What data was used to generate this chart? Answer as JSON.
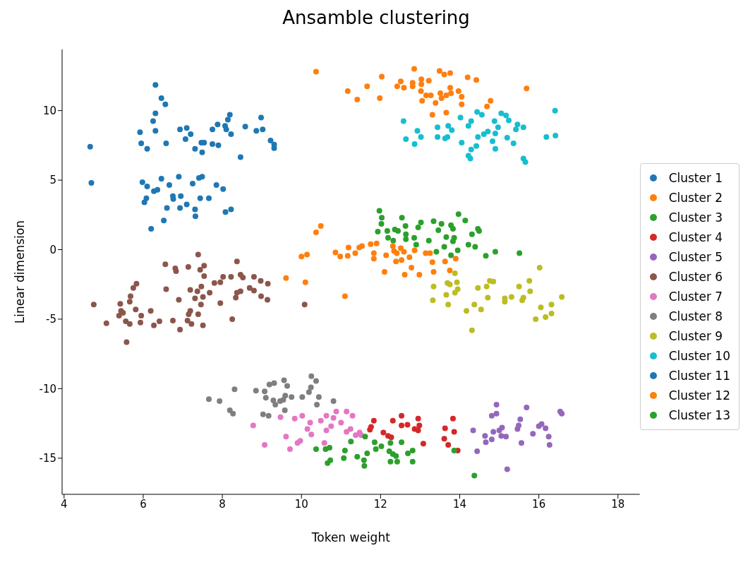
{
  "chart_data": {
    "type": "scatter",
    "title": "Ansamble clustering",
    "xlabel": "Token weight",
    "ylabel": "Linear dimension",
    "xlim": [
      3.95,
      18.55
    ],
    "ylim": [
      -17.6,
      14.4
    ],
    "xticks": [
      4,
      6,
      8,
      10,
      12,
      14,
      16,
      18
    ],
    "yticks": [
      -15,
      -10,
      -5,
      0,
      5,
      10
    ],
    "grid": false,
    "legend": "right",
    "marker": "circle",
    "series": [
      {
        "name": "Cluster 1",
        "color": "#1f77b4",
        "x": [
          6.31,
          6.46,
          6.56,
          6.31,
          6.25,
          5.92,
          6.31,
          5.95,
          6.1,
          6.58,
          6.93,
          7.1,
          7.2,
          7.07,
          7.31,
          7.47,
          7.54,
          7.49,
          7.75,
          7.88,
          7.75,
          7.9,
          8.07,
          8.1,
          8.14,
          8.19,
          8.22,
          8.46,
          8.58,
          8.86,
          9.02,
          8.98,
          9.22,
          9.31,
          9.31,
          4.66
        ],
        "values": [
          11.85,
          10.9,
          10.45,
          9.8,
          9.25,
          8.45,
          8.55,
          7.65,
          7.25,
          7.65,
          8.65,
          8.75,
          8.3,
          7.95,
          7.25,
          7.7,
          7.7,
          7.0,
          8.65,
          9.0,
          7.6,
          7.5,
          8.9,
          8.65,
          9.35,
          9.7,
          8.3,
          6.65,
          8.85,
          8.55,
          8.65,
          9.5,
          7.85,
          7.55,
          7.3,
          7.4
        ]
      },
      {
        "name": "Cluster 2",
        "color": "#ff7f0e",
        "x": [
          10.37,
          11.17,
          11.41,
          11.66,
          12.03,
          11.98,
          12.42,
          12.51,
          12.59,
          12.81,
          12.81,
          12.85,
          13.03,
          13.22,
          13.03,
          13.02,
          13.05,
          13.15,
          13.27,
          13.39,
          13.49,
          13.61,
          13.76,
          13.51,
          13.54,
          13.66,
          13.76,
          13.78,
          13.97,
          14.05,
          14.05,
          14.2,
          14.42,
          13.66,
          13.31,
          14.78,
          14.69,
          15.69
        ],
        "values": [
          12.8,
          11.4,
          10.8,
          11.75,
          12.45,
          10.9,
          11.75,
          12.1,
          11.65,
          12.0,
          11.75,
          13.0,
          12.25,
          12.15,
          11.9,
          11.4,
          10.7,
          11.1,
          11.1,
          10.55,
          12.85,
          12.6,
          12.7,
          11.25,
          10.9,
          11.1,
          11.65,
          11.25,
          11.4,
          11.0,
          10.45,
          12.4,
          12.2,
          9.85,
          9.7,
          10.7,
          10.3,
          11.6
        ]
      },
      {
        "name": "Cluster 3",
        "color": "#2ca02c",
        "x": [
          11.97,
          12.03,
          12.02,
          11.93,
          12.17,
          12.19,
          12.32,
          12.36,
          12.44,
          12.54,
          12.63,
          12.64,
          12.64,
          12.85,
          12.9,
          12.95,
          13.02,
          13.22,
          13.34,
          13.41,
          13.46,
          13.54,
          13.61,
          13.66,
          13.78,
          13.83,
          13.86,
          13.83,
          13.78,
          13.95,
          13.97,
          14.14,
          14.31,
          14.22,
          14.39,
          14.46,
          14.49,
          14.66,
          14.9,
          15.51
        ],
        "values": [
          2.8,
          2.3,
          1.85,
          1.3,
          1.35,
          0.85,
          0.65,
          1.45,
          1.35,
          2.3,
          1.7,
          1.1,
          0.75,
          0.85,
          0.35,
          1.6,
          1.95,
          0.65,
          2.05,
          -0.15,
          1.4,
          1.85,
          0.2,
          0.9,
          1.75,
          1.5,
          0.85,
          0.6,
          -0.4,
          -0.05,
          2.55,
          2.1,
          1.1,
          0.35,
          0.2,
          1.5,
          1.35,
          -0.45,
          -0.15,
          -0.25
        ]
      },
      {
        "name": "Cluster 4",
        "color": "#d62728",
        "x": [
          11.73,
          11.76,
          11.83,
          12.07,
          12.19,
          12.27,
          12.31,
          12.53,
          12.53,
          12.68,
          12.86,
          12.95,
          12.98,
          12.95,
          13.08,
          13.63,
          13.61,
          13.71,
          13.83,
          13.86,
          13.95
        ],
        "values": [
          -12.95,
          -12.75,
          -12.3,
          -13.15,
          -13.4,
          -13.5,
          -12.3,
          -11.95,
          -12.65,
          -12.6,
          -12.9,
          -12.15,
          -12.65,
          -13.0,
          -13.95,
          -12.85,
          -13.6,
          -14.05,
          -12.15,
          -13.1,
          -14.45
        ]
      },
      {
        "name": "Cluster 5",
        "color": "#9467bd",
        "x": [
          14.34,
          14.44,
          14.64,
          14.66,
          14.81,
          14.81,
          14.93,
          14.93,
          14.85,
          15.0,
          15.07,
          15.05,
          15.17,
          15.2,
          15.46,
          15.49,
          15.53,
          15.56,
          15.69,
          15.85,
          16.0,
          16.07,
          16.17,
          16.25,
          16.27,
          16.54,
          16.58
        ],
        "values": [
          -13.0,
          -14.5,
          -13.4,
          -13.85,
          -13.65,
          -11.95,
          -11.8,
          -11.15,
          -13.1,
          -13.0,
          -12.8,
          -13.4,
          -13.45,
          -15.8,
          -12.9,
          -12.65,
          -12.2,
          -13.9,
          -11.35,
          -13.25,
          -12.7,
          -12.55,
          -12.85,
          -13.45,
          -14.05,
          -11.65,
          -11.8
        ]
      },
      {
        "name": "Cluster 6",
        "color": "#8c564b",
        "x": [
          7.39,
          6.56,
          6.81,
          6.83,
          7.14,
          7.54,
          7.44,
          7.54,
          8.37,
          8.02,
          7.95,
          7.8,
          8.22,
          8.46,
          8.52,
          8.8,
          8.97,
          9.15,
          8.69,
          8.8,
          8.46,
          8.37,
          8.34,
          8.98,
          9.14,
          7.68,
          7.47,
          7.37,
          7.19,
          6.58,
          6.9,
          7.31,
          7.51,
          7.46,
          7.95,
          7.19,
          7.15,
          7.39,
          7.12,
          7.22,
          7.51,
          8.25,
          6.75,
          6.93,
          6.41,
          6.27,
          6.19,
          5.81,
          5.95,
          5.93,
          5.83,
          5.75,
          5.68,
          5.66,
          5.42,
          5.44,
          5.49,
          5.39,
          5.56,
          5.66,
          5.07,
          4.75,
          5.58,
          10.08
        ],
        "values": [
          -0.35,
          -1.05,
          -1.35,
          -1.55,
          -1.25,
          -1.15,
          -1.45,
          -1.9,
          -0.85,
          -1.95,
          -2.35,
          -2.4,
          -1.95,
          -1.8,
          -2.0,
          -1.95,
          -2.25,
          -2.45,
          -2.75,
          -2.95,
          -3.0,
          -3.1,
          -3.45,
          -3.35,
          -3.6,
          -3.1,
          -2.65,
          -3.0,
          -2.9,
          -2.85,
          -3.6,
          -3.5,
          -3.4,
          -3.95,
          -3.85,
          -4.4,
          -4.65,
          -4.65,
          -5.1,
          -5.35,
          -5.45,
          -5.0,
          -5.1,
          -5.75,
          -5.15,
          -5.45,
          -4.4,
          -4.3,
          -4.75,
          -5.25,
          -2.45,
          -2.75,
          -3.35,
          -3.75,
          -3.9,
          -4.4,
          -4.55,
          -4.75,
          -5.15,
          -5.35,
          -5.3,
          -3.95,
          -6.65,
          -3.95
        ]
      },
      {
        "name": "Cluster 7",
        "color": "#e377c2",
        "x": [
          8.78,
          9.07,
          9.47,
          9.61,
          9.71,
          9.83,
          9.9,
          9.97,
          10.02,
          10.15,
          10.22,
          10.25,
          10.49,
          10.63,
          10.63,
          10.75,
          10.81,
          10.88,
          10.58,
          11.0,
          11.14,
          11.29,
          11.14,
          11.24,
          11.37,
          11.47,
          11.51
        ],
        "values": [
          -12.65,
          -14.05,
          -12.05,
          -13.45,
          -14.35,
          -12.15,
          -13.9,
          -13.75,
          -11.95,
          -12.9,
          -12.45,
          -13.3,
          -12.3,
          -11.95,
          -13.0,
          -12.7,
          -12.1,
          -11.65,
          -13.9,
          -12.45,
          -11.65,
          -11.95,
          -13.1,
          -12.9,
          -13.35,
          -13.15,
          -13.35
        ]
      },
      {
        "name": "Cluster 8",
        "color": "#7f7f7f",
        "x": [
          7.66,
          7.93,
          8.31,
          8.19,
          8.27,
          8.85,
          9.07,
          9.1,
          9.19,
          9.31,
          9.29,
          9.34,
          9.46,
          9.54,
          9.59,
          9.56,
          9.64,
          9.75,
          9.58,
          9.03,
          9.17,
          10.02,
          10.19,
          10.24,
          10.25,
          10.37,
          10.44,
          10.39,
          10.81
        ],
        "values": [
          -10.75,
          -10.9,
          -10.05,
          -11.55,
          -11.8,
          -10.15,
          -10.2,
          -10.65,
          -9.7,
          -9.6,
          -10.85,
          -11.15,
          -10.9,
          -10.8,
          -10.5,
          -9.4,
          -9.8,
          -10.6,
          -11.55,
          -11.85,
          -11.95,
          -10.6,
          -10.25,
          -9.9,
          -9.1,
          -9.45,
          -10.6,
          -11.15,
          -10.9
        ]
      },
      {
        "name": "Cluster 9",
        "color": "#bcbd22",
        "x": [
          13.88,
          13.69,
          13.75,
          13.93,
          13.95,
          13.88,
          13.34,
          13.32,
          13.66,
          13.71,
          14.17,
          14.37,
          14.54,
          14.31,
          14.46,
          14.68,
          14.76,
          14.85,
          14.71,
          15.14,
          15.14,
          15.31,
          15.5,
          15.58,
          15.61,
          15.76,
          15.78,
          16.02,
          16.05,
          15.92,
          16.17,
          16.32,
          16.32,
          16.58
        ],
        "values": [
          -1.7,
          -2.4,
          -2.5,
          -2.35,
          -2.85,
          -3.1,
          -2.65,
          -3.65,
          -3.25,
          -3.95,
          -4.4,
          -3.95,
          -4.3,
          -5.8,
          -2.75,
          -2.65,
          -2.25,
          -2.3,
          -3.45,
          -3.5,
          -3.75,
          -3.4,
          -2.65,
          -3.65,
          -3.45,
          -2.25,
          -3.0,
          -1.3,
          -4.15,
          -5.0,
          -4.85,
          -3.95,
          -4.6,
          -3.4
        ]
      },
      {
        "name": "Cluster 10",
        "color": "#17becf",
        "x": [
          12.58,
          12.93,
          13.02,
          12.64,
          12.86,
          13.44,
          13.44,
          13.63,
          13.69,
          13.71,
          13.8,
          14.02,
          14.05,
          14.22,
          14.29,
          14.44,
          14.56,
          14.46,
          14.61,
          14.71,
          14.42,
          14.29,
          14.22,
          14.27,
          14.88,
          14.97,
          14.9,
          14.83,
          14.9,
          15.05,
          15.17,
          15.24,
          15.2,
          15.36,
          15.46,
          15.42,
          15.61,
          15.61,
          15.66,
          16.19,
          16.42,
          16.41
        ],
        "values": [
          9.25,
          8.55,
          8.1,
          7.95,
          7.6,
          8.8,
          8.1,
          8.0,
          8.1,
          8.9,
          8.6,
          9.5,
          7.7,
          8.9,
          9.25,
          9.9,
          9.7,
          8.1,
          8.3,
          8.5,
          7.45,
          7.2,
          6.75,
          6.55,
          9.25,
          8.8,
          8.35,
          7.8,
          7.25,
          9.8,
          9.65,
          9.3,
          8.05,
          7.65,
          9.0,
          8.65,
          8.8,
          6.55,
          6.3,
          8.1,
          8.2,
          10.0
        ]
      },
      {
        "name": "Cluster 11",
        "color": "#1f77b4",
        "x": [
          4.69,
          5.98,
          6.1,
          6.46,
          6.66,
          6.9,
          7.25,
          7.41,
          7.49,
          7.85,
          8.02,
          6.27,
          6.36,
          6.08,
          6.03,
          6.75,
          6.76,
          6.95,
          7.44,
          7.66,
          6.6,
          6.93,
          7.1,
          7.31,
          7.32,
          8.08,
          8.22,
          6.52,
          6.2
        ],
        "values": [
          4.8,
          4.85,
          4.55,
          5.1,
          4.65,
          5.25,
          4.75,
          5.15,
          5.25,
          4.65,
          4.35,
          4.2,
          4.3,
          3.7,
          3.4,
          3.85,
          3.65,
          3.85,
          3.7,
          3.7,
          3.0,
          3.0,
          3.25,
          2.9,
          2.4,
          2.7,
          2.9,
          2.1,
          1.5
        ]
      },
      {
        "name": "Cluster 12",
        "color": "#ff7f0e",
        "x": [
          10.49,
          10.37,
          10.0,
          10.14,
          9.61,
          10.1,
          11.1,
          10.86,
          10.98,
          11.17,
          11.19,
          11.36,
          11.46,
          11.53,
          11.75,
          11.9,
          11.83,
          11.83,
          12.14,
          12.31,
          12.34,
          12.41,
          12.51,
          12.59,
          12.39,
          12.53,
          12.73,
          12.86,
          12.78,
          12.1,
          12.61,
          12.98,
          13.14,
          13.25,
          13.31,
          13.34,
          13.63,
          13.75,
          13.9
        ],
        "values": [
          1.7,
          1.25,
          -0.5,
          -0.35,
          -2.05,
          -2.35,
          -3.35,
          -0.2,
          -0.5,
          -0.45,
          0.15,
          -0.25,
          0.15,
          0.25,
          0.4,
          0.45,
          -0.25,
          -0.65,
          -0.4,
          0.25,
          -0.1,
          -0.25,
          0.1,
          -0.15,
          -0.85,
          -0.75,
          -0.55,
          -0.05,
          -1.3,
          -1.6,
          -1.8,
          -1.8,
          -0.25,
          -0.25,
          -0.9,
          -1.6,
          -0.85,
          -1.5,
          -0.65
        ]
      },
      {
        "name": "Cluster 13",
        "color": "#2ca02c",
        "x": [
          10.37,
          10.61,
          10.71,
          10.66,
          10.73,
          11.07,
          11.1,
          11.25,
          11.41,
          11.58,
          11.59,
          11.66,
          11.61,
          11.85,
          11.88,
          12.02,
          12.25,
          12.22,
          12.31,
          12.39,
          12.25,
          12.42,
          12.53,
          12.69,
          12.81,
          12.81,
          13.86,
          14.37
        ],
        "values": [
          -14.35,
          -14.35,
          -14.25,
          -15.35,
          -15.15,
          -15.0,
          -14.45,
          -13.8,
          -14.9,
          -15.15,
          -15.55,
          -14.65,
          -13.45,
          -13.85,
          -14.35,
          -14.15,
          -13.9,
          -14.5,
          -14.7,
          -14.85,
          -15.25,
          -15.25,
          -13.85,
          -14.65,
          -14.45,
          -15.25,
          -14.45,
          -16.25
        ]
      }
    ]
  }
}
